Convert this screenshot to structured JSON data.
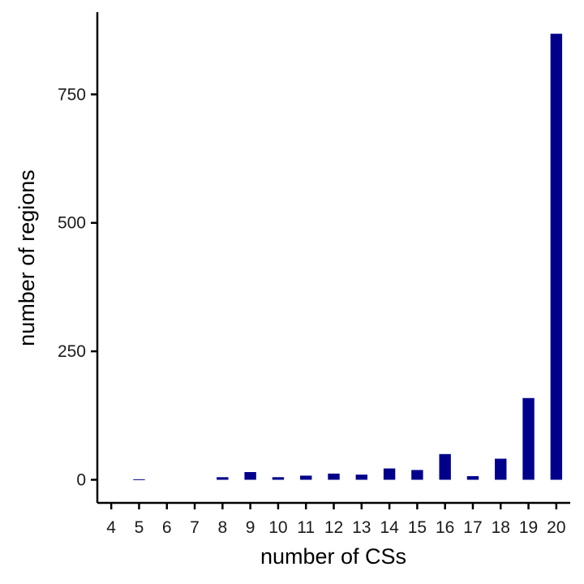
{
  "chart_data": {
    "type": "bar",
    "title": "",
    "xlabel": "number of CSs",
    "ylabel": "number of regions",
    "categories": [
      "4",
      "5",
      "6",
      "7",
      "8",
      "9",
      "10",
      "11",
      "12",
      "13",
      "14",
      "15",
      "16",
      "17",
      "18",
      "19",
      "20"
    ],
    "values": [
      0,
      1,
      0,
      0,
      5,
      15,
      5,
      8,
      12,
      10,
      22,
      19,
      50,
      7,
      41,
      159,
      868
    ],
    "yticks": [
      0,
      250,
      500,
      750
    ],
    "ylim": [
      -45,
      910
    ],
    "grid": false,
    "legend": "none",
    "bar_color": "#00008B"
  }
}
